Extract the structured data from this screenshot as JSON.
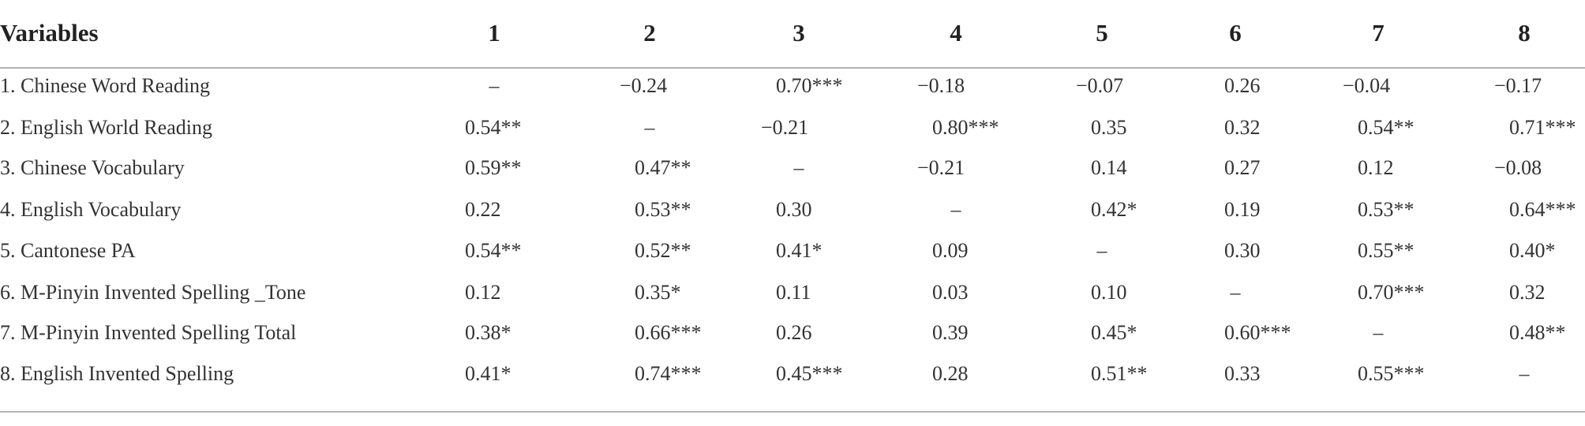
{
  "table": {
    "header": [
      "Variables",
      "1",
      "2",
      "3",
      "4",
      "5",
      "6",
      "7",
      "8"
    ],
    "rows": [
      [
        "1. Chinese Word Reading",
        "–",
        "−0.24",
        "0.70***",
        "−0.18",
        "−0.07",
        "0.26",
        "−0.04",
        "−0.17"
      ],
      [
        "2. English World Reading",
        "0.54**",
        "–",
        "−0.21",
        "0.80***",
        "0.35",
        "0.32",
        "0.54**",
        "0.71***"
      ],
      [
        "3. Chinese Vocabulary",
        "0.59**",
        "0.47**",
        "–",
        "−0.21",
        "0.14",
        "0.27",
        "0.12",
        "−0.08"
      ],
      [
        "4. English Vocabulary",
        "0.22",
        "0.53**",
        "0.30",
        "–",
        "0.42*",
        "0.19",
        "0.53**",
        "0.64***"
      ],
      [
        "5. Cantonese PA",
        "0.54**",
        "0.52**",
        "0.41*",
        "0.09",
        "–",
        "0.30",
        "0.55**",
        "0.40*"
      ],
      [
        "6. M-Pinyin Invented Spelling _Tone",
        "0.12",
        "0.35*",
        "0.11",
        "0.03",
        "0.10",
        "–",
        "0.70***",
        "0.32"
      ],
      [
        "7. M-Pinyin Invented Spelling Total",
        "0.38*",
        "0.66***",
        "0.26",
        "0.39",
        "0.45*",
        "0.60***",
        "–",
        "0.48**"
      ],
      [
        "8. English Invented Spelling",
        "0.41*",
        "0.74***",
        "0.45***",
        "0.28",
        "0.51**",
        "0.33",
        "0.55***",
        "–"
      ]
    ]
  }
}
